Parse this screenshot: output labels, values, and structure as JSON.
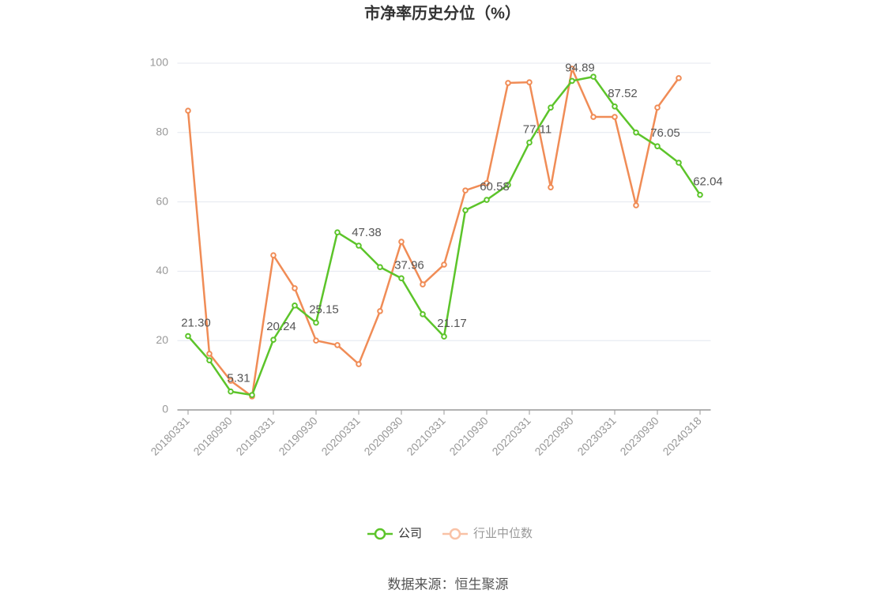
{
  "chart_data": {
    "type": "line",
    "title": "市净率历史分位（%）",
    "source": "数据来源：恒生聚源",
    "categories": [
      "20180331",
      null,
      "20180930",
      null,
      "20190331",
      null,
      "20190930",
      null,
      "20200331",
      null,
      "20200930",
      null,
      "20210331",
      null,
      "20210930",
      null,
      "20220331",
      null,
      "20220930",
      null,
      "20230331",
      null,
      "20230930",
      null,
      "20240318"
    ],
    "series": [
      {
        "name": "公司",
        "color": "#5cc42a",
        "values": [
          21.3,
          14.3,
          5.31,
          4.3,
          20.24,
          30.1,
          25.15,
          51.2,
          47.38,
          41.2,
          37.96,
          27.6,
          21.17,
          57.6,
          60.58,
          64.9,
          77.11,
          87.2,
          94.89,
          96.1,
          87.52,
          80.0,
          76.05,
          71.3,
          62.04
        ],
        "value_labels": [
          "21.30",
          null,
          "5.31",
          null,
          "20.24",
          null,
          "25.15",
          null,
          "47.38",
          null,
          "37.96",
          null,
          "21.17",
          null,
          "60.58",
          null,
          "77.11",
          null,
          "94.89",
          null,
          "87.52",
          null,
          "76.05",
          null,
          "62.04"
        ]
      },
      {
        "name": "行业中位数",
        "color": "#f08c56",
        "legend_color": "#f9c2a6",
        "values": [
          86.3,
          16.2,
          8.4,
          3.9,
          44.6,
          35.1,
          20.0,
          18.7,
          13.2,
          28.5,
          48.5,
          36.2,
          41.9,
          63.3,
          65.4,
          94.3,
          94.5,
          64.2,
          98.4,
          84.5,
          84.5,
          59.0,
          87.2,
          95.7,
          null
        ]
      }
    ],
    "ylim": [
      0,
      100
    ],
    "yticks": [
      0,
      20,
      40,
      60,
      80,
      100
    ],
    "grid": true
  }
}
